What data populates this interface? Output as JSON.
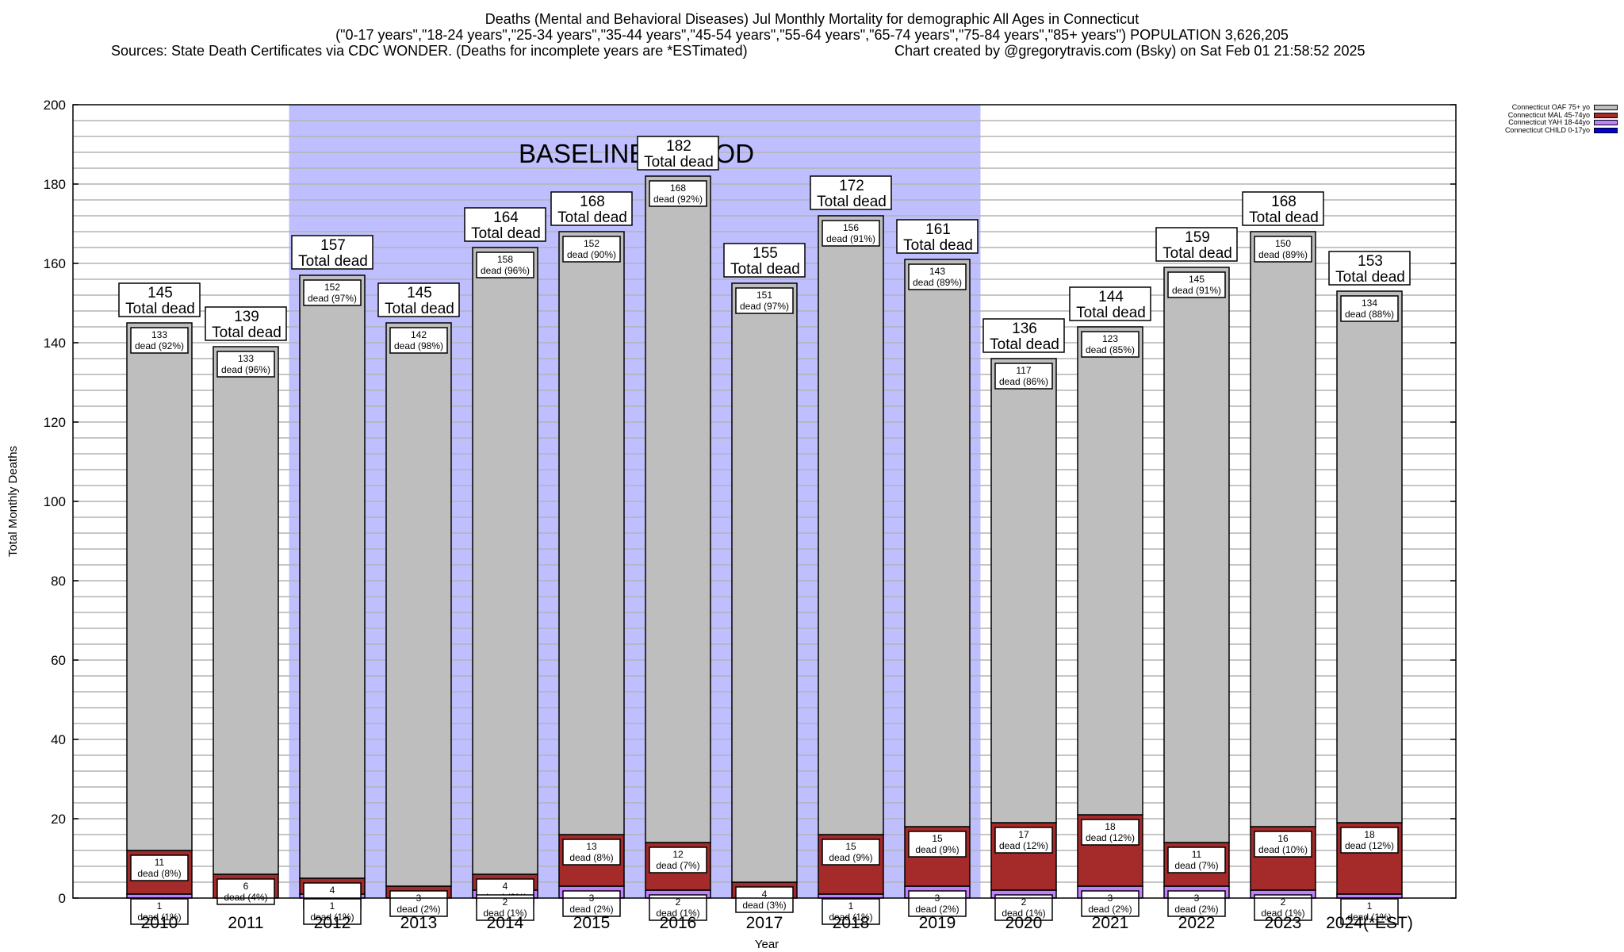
{
  "header": {
    "title": "Deaths (Mental and Behavioral Diseases) Jul Monthly Mortality for demographic All Ages in Connecticut",
    "subtitle": "(\"0-17 years\",\"18-24 years\",\"25-34 years\",\"35-44 years\",\"45-54 years\",\"55-64 years\",\"65-74 years\",\"75-84 years\",\"85+ years\") POPULATION 3,626,205",
    "sources": "Sources: State Death Certificates via CDC WONDER. (Deaths for incomplete years are *ESTimated)",
    "credit": "Chart created by @gregorytravis.com (Bsky) on Sat Feb 01 21:58:52 2025"
  },
  "chart_data": {
    "type": "bar",
    "stacked": true,
    "title": "Deaths (Mental and Behavioral Diseases) Jul Monthly Mortality for demographic All Ages in Connecticut",
    "xlabel": "Year",
    "ylabel": "Total Monthly Deaths",
    "ylim": [
      0,
      200
    ],
    "yticks": [
      0,
      20,
      40,
      60,
      80,
      100,
      120,
      140,
      160,
      180,
      200
    ],
    "minor_grid_step": 4,
    "grid": true,
    "legend_position": "top-right-outside",
    "categories": [
      "2010",
      "2011",
      "2012",
      "2013",
      "2014",
      "2015",
      "2016",
      "2017",
      "2018",
      "2019",
      "2020",
      "2021",
      "2022",
      "2023",
      "2024(*EST)"
    ],
    "series": [
      {
        "name": "Connecticut CHILD 0-17yo",
        "color": "#0000e0",
        "values": [
          0,
          0,
          0,
          0,
          0,
          0,
          0,
          0,
          0,
          0,
          0,
          0,
          0,
          0,
          0
        ]
      },
      {
        "name": "Connecticut YAH 18-44yo",
        "color": "#c080ff",
        "values": [
          1,
          0,
          1,
          0,
          2,
          3,
          2,
          0,
          1,
          3,
          2,
          3,
          3,
          2,
          1
        ],
        "pct": [
          1,
          0,
          1,
          0,
          1,
          2,
          1,
          0,
          1,
          2,
          1,
          2,
          2,
          1,
          1
        ]
      },
      {
        "name": "Connecticut MAL 45-74yo",
        "color": "#a52a2a",
        "values": [
          11,
          6,
          4,
          3,
          4,
          13,
          12,
          4,
          15,
          15,
          17,
          18,
          11,
          16,
          18
        ],
        "pct": [
          8,
          4,
          3,
          2,
          2,
          8,
          7,
          3,
          9,
          9,
          12,
          12,
          7,
          10,
          12
        ]
      },
      {
        "name": "Connecticut OAF 75+ yo",
        "color": "#bebebe",
        "values": [
          133,
          133,
          152,
          142,
          158,
          152,
          168,
          151,
          156,
          143,
          117,
          123,
          145,
          150,
          134
        ],
        "pct": [
          92,
          96,
          97,
          98,
          96,
          90,
          92,
          97,
          91,
          89,
          86,
          85,
          91,
          89,
          88
        ]
      }
    ],
    "totals": [
      145,
      139,
      157,
      145,
      164,
      168,
      182,
      155,
      172,
      161,
      136,
      144,
      159,
      168,
      153
    ],
    "total_label_suffix": "Total dead",
    "segment_label_suffix": "dead",
    "annotations": [
      {
        "text": "BASELINE PERIOD",
        "from_category": "2012",
        "to_category": "2019",
        "color": "#bfbfff"
      }
    ]
  },
  "legend": {
    "items": [
      {
        "label": "Connecticut OAF 75+ yo",
        "color": "#bebebe"
      },
      {
        "label": "Connecticut MAL 45-74yo",
        "color": "#a52a2a"
      },
      {
        "label": "Connecticut YAH 18-44yo",
        "color": "#c080ff"
      },
      {
        "label": "Connecticut CHILD 0-17yo",
        "color": "#0000e0"
      }
    ]
  }
}
